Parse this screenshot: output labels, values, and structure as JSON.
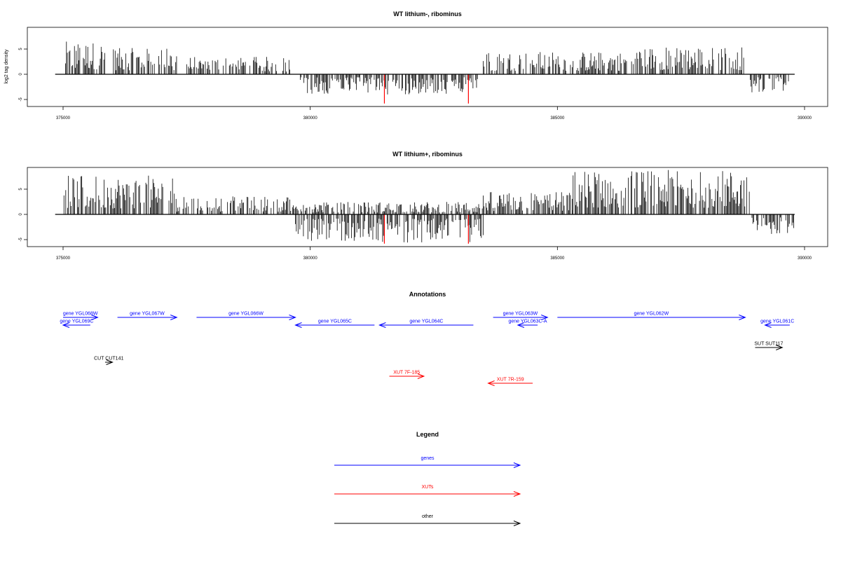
{
  "colors": {
    "signal": "#000000",
    "highlight": "#ff0000",
    "genes": "#0000ff",
    "xuts": "#ff0000",
    "other": "#000000"
  },
  "chart_data": [
    {
      "type": "bar",
      "title": "WT lithium-, ribominus",
      "ylabel": "log2 tag density",
      "xlim": [
        374800,
        389900
      ],
      "ylim": [
        -6,
        9
      ],
      "xticks": [
        "375000",
        "380000",
        "385000",
        "390000"
      ],
      "yticks": [
        "-5",
        "0",
        "5"
      ],
      "signal_segments": [
        {
          "start": 375050,
          "end": 375850,
          "sign": 1,
          "max": 6.5
        },
        {
          "start": 376000,
          "end": 377300,
          "sign": 1,
          "max": 5.2
        },
        {
          "start": 377500,
          "end": 379600,
          "sign": 1,
          "max": 3.5
        },
        {
          "start": 379800,
          "end": 383400,
          "sign": -1,
          "max": 4.0
        },
        {
          "start": 383500,
          "end": 386400,
          "sign": 1,
          "max": 4.5
        },
        {
          "start": 386500,
          "end": 388800,
          "sign": 1,
          "max": 5.5
        },
        {
          "start": 388900,
          "end": 389700,
          "sign": -1,
          "max": 3.8
        }
      ],
      "highlights": [
        {
          "x": 381500,
          "y": -5.8
        },
        {
          "x": 383200,
          "y": -5.8
        }
      ]
    },
    {
      "type": "bar",
      "title": "WT lithium+, ribominus",
      "ylabel": "",
      "xlim": [
        374800,
        389900
      ],
      "ylim": [
        -6,
        9
      ],
      "xticks": [
        "375000",
        "380000",
        "385000",
        "390000"
      ],
      "yticks": [
        "-5",
        "0",
        "5"
      ],
      "signal_segments": [
        {
          "start": 375000,
          "end": 377300,
          "sign": 1,
          "max": 7.8
        },
        {
          "start": 377300,
          "end": 379700,
          "sign": 1,
          "max": 3.6
        },
        {
          "start": 379700,
          "end": 383500,
          "sign": -1,
          "max": 5.6
        },
        {
          "start": 379700,
          "end": 383500,
          "sign": 1,
          "max": 2.5
        },
        {
          "start": 383500,
          "end": 385300,
          "sign": 1,
          "max": 4.5
        },
        {
          "start": 385300,
          "end": 388900,
          "sign": 1,
          "max": 8.8
        },
        {
          "start": 388900,
          "end": 389800,
          "sign": -1,
          "max": 4.0
        }
      ],
      "highlights": [
        {
          "x": 381500,
          "y": -5.8
        },
        {
          "x": 383200,
          "y": -5.8
        }
      ]
    }
  ],
  "annotations": {
    "title": "Annotations",
    "features": [
      {
        "label": "gene YGL068W",
        "kind": "genes",
        "start": 375000,
        "end": 375700,
        "strand": "+"
      },
      {
        "label": "gene YGL069C",
        "kind": "genes",
        "start": 375000,
        "end": 375550,
        "strand": "-"
      },
      {
        "label": "gene YGL067W",
        "kind": "genes",
        "start": 376100,
        "end": 377300,
        "strand": "+"
      },
      {
        "label": "gene YGL066W",
        "kind": "genes",
        "start": 377700,
        "end": 379700,
        "strand": "+"
      },
      {
        "label": "gene YGL065C",
        "kind": "genes",
        "start": 379700,
        "end": 381300,
        "strand": "-"
      },
      {
        "label": "gene YGL064C",
        "kind": "genes",
        "start": 381400,
        "end": 383300,
        "strand": "-"
      },
      {
        "label": "gene YGL063W",
        "kind": "genes",
        "start": 383700,
        "end": 384800,
        "strand": "+"
      },
      {
        "label": "gene YGL063C-A",
        "kind": "genes",
        "start": 384200,
        "end": 384600,
        "strand": "-"
      },
      {
        "label": "gene YGL062W",
        "kind": "genes",
        "start": 385000,
        "end": 388800,
        "strand": "+"
      },
      {
        "label": "gene YGL061C",
        "kind": "genes",
        "start": 389200,
        "end": 389700,
        "strand": "-"
      },
      {
        "label": "SUT SUT117",
        "kind": "other",
        "start": 389000,
        "end": 389550,
        "strand": "+"
      },
      {
        "label": "CUT CUT141",
        "kind": "other",
        "start": 375850,
        "end": 376000,
        "strand": "+"
      },
      {
        "label": "XUT 7F-185",
        "kind": "xuts",
        "start": 381600,
        "end": 382300,
        "strand": "+"
      },
      {
        "label": "XUT 7R-159",
        "kind": "xuts",
        "start": 383600,
        "end": 384500,
        "strand": "-"
      }
    ]
  },
  "legend": {
    "title": "Legend",
    "items": [
      {
        "label": "genes",
        "kind": "genes"
      },
      {
        "label": "XUTs",
        "kind": "xuts"
      },
      {
        "label": "other",
        "kind": "other"
      }
    ]
  }
}
